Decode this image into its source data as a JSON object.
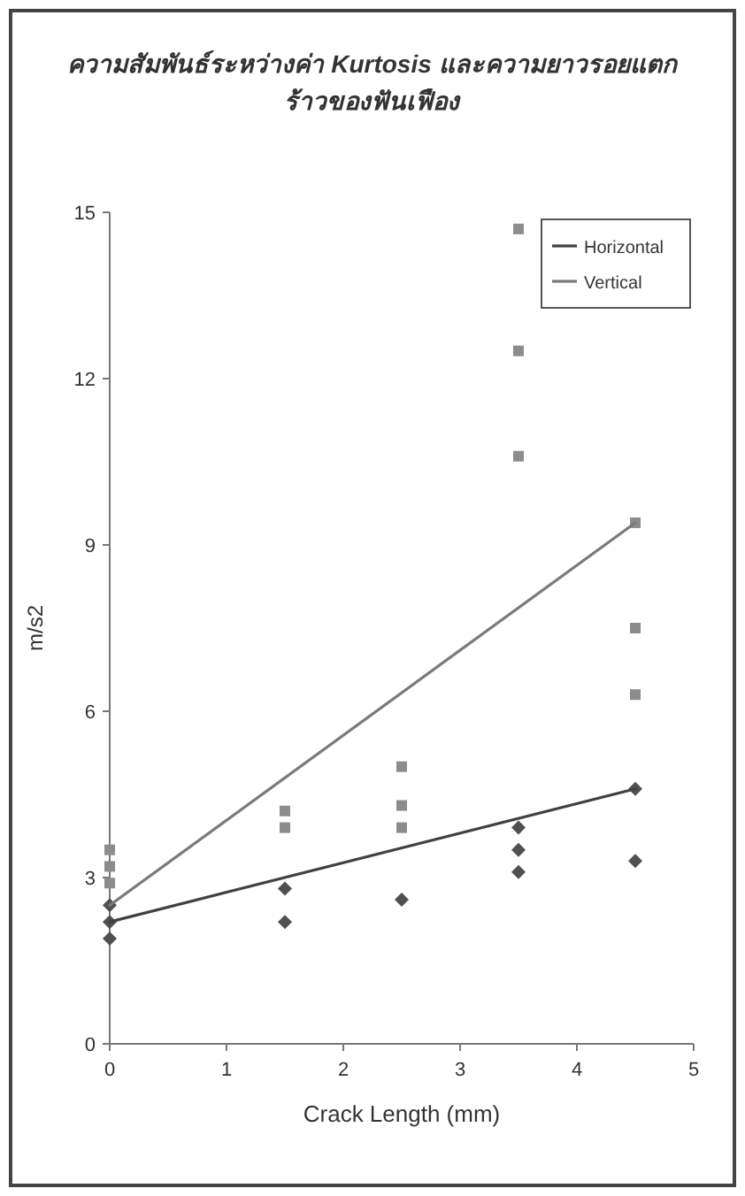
{
  "chart_data": {
    "type": "scatter",
    "title": "*ความสัมพันธ์ระหว่างค่า Kurtosis และความยาวรอยแตกร้าวของฟันเฟือง*",
    "xlabel": "Crack Length (mm)",
    "ylabel": "m/s2",
    "xlim": [
      0,
      5
    ],
    "xticks": [
      0,
      1,
      2,
      3,
      4,
      5
    ],
    "ylim": [
      0,
      15
    ],
    "yticks": [
      0,
      3,
      6,
      9,
      12,
      15
    ],
    "legend": "top right",
    "series": [
      {
        "type": "scatter",
        "color": "#8c8c8c",
        "marker": "square",
        "x": [
          0,
          0,
          0,
          1.5,
          1.5,
          2.5,
          2.5,
          2.5,
          3.5,
          3.5,
          3.5,
          4.5,
          4.5,
          4.5
        ],
        "values": [
          3.5,
          3.2,
          2.9,
          4.2,
          3.9,
          5.0,
          4.3,
          3.9,
          14.7,
          12.5,
          10.6,
          9.4,
          7.5,
          6.3
        ]
      },
      {
        "type": "scatter",
        "color": "#505050",
        "marker": "diamond",
        "x": [
          0,
          0,
          0,
          1.5,
          1.5,
          2.5,
          3.5,
          3.5,
          3.5,
          4.5,
          4.5
        ],
        "values": [
          2.5,
          2.2,
          1.9,
          2.8,
          2.2,
          2.6,
          3.9,
          3.5,
          3.1,
          4.6,
          3.3
        ]
      },
      {
        "type": "line",
        "name": "Horizontal",
        "color": "#404040",
        "x": [
          0,
          4.5
        ],
        "values": [
          2.2,
          4.6
        ]
      },
      {
        "type": "line",
        "name": "Vertical",
        "color": "#7a7a7a",
        "x": [
          0,
          4.5
        ],
        "values": [
          2.5,
          9.4
        ]
      }
    ]
  }
}
